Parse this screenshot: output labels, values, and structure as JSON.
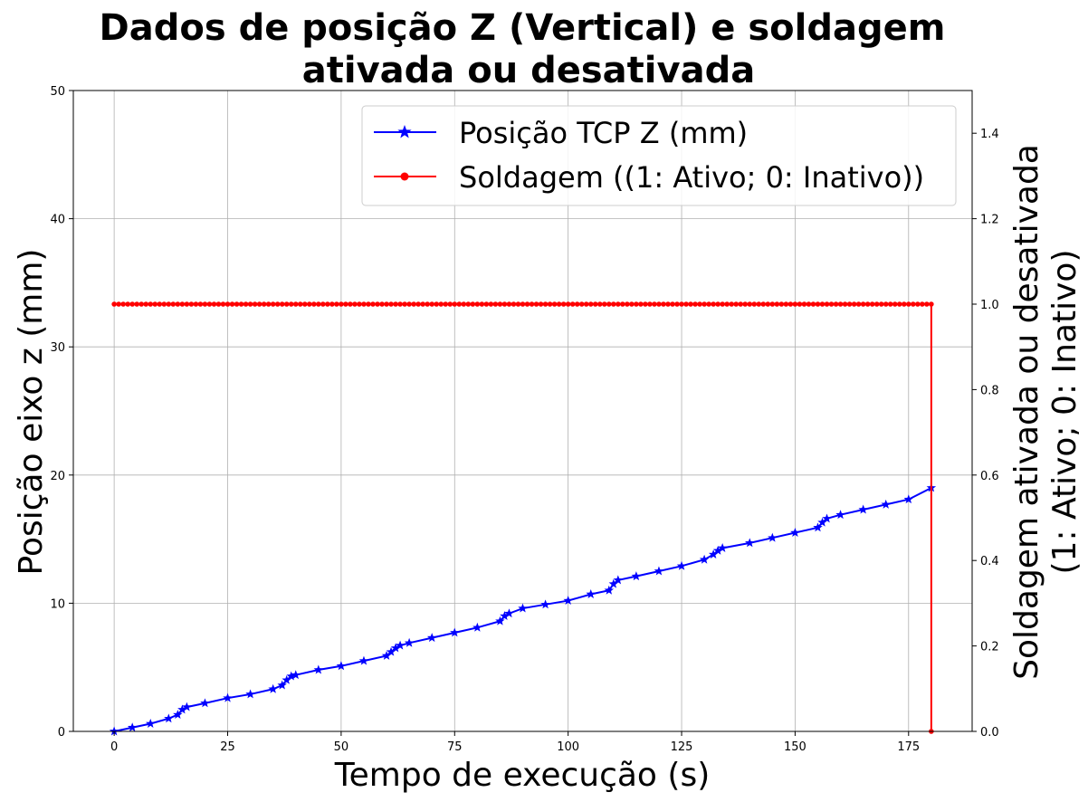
{
  "chart_data": {
    "type": "line",
    "title": [
      "Dados de posição Z (Vertical) e soldagem",
      "ativada ou desativada"
    ],
    "xlabel": "Tempo de execução (s)",
    "ylabel_left": "Posição eixo z (mm)",
    "ylabel_right": [
      "Soldagem ativada ou desativada",
      "(1: Ativo; 0: Inativo)"
    ],
    "xlim": [
      -9,
      189
    ],
    "ylim_left": [
      0,
      50
    ],
    "ylim_right": [
      0,
      1.5
    ],
    "x_ticks": [
      0,
      25,
      50,
      75,
      100,
      125,
      150,
      175
    ],
    "y_left_ticks": [
      0,
      10,
      20,
      30,
      40,
      50
    ],
    "y_right_ticks": [
      "0.0",
      "0.2",
      "0.4",
      "0.6",
      "0.8",
      "1.0",
      "1.2",
      "1.4"
    ],
    "grid": true,
    "legend_position": "top-right",
    "series": [
      {
        "name": "Posição TCP Z (mm)",
        "axis": "left",
        "color": "#0000ff",
        "marker": "star",
        "x": [
          0,
          4,
          8,
          12,
          14,
          15,
          16,
          20,
          25,
          30,
          35,
          37,
          38,
          39,
          40,
          45,
          50,
          55,
          60,
          61,
          62,
          63,
          65,
          70,
          75,
          80,
          85,
          86,
          87,
          90,
          95,
          100,
          105,
          109,
          110,
          111,
          115,
          120,
          125,
          130,
          132,
          133,
          134,
          140,
          145,
          150,
          155,
          156,
          157,
          160,
          165,
          170,
          175,
          180
        ],
        "values": [
          0.0,
          0.3,
          0.6,
          1.0,
          1.3,
          1.7,
          1.9,
          2.2,
          2.6,
          2.9,
          3.3,
          3.6,
          4.0,
          4.3,
          4.4,
          4.8,
          5.1,
          5.5,
          5.9,
          6.2,
          6.5,
          6.7,
          6.9,
          7.3,
          7.7,
          8.1,
          8.6,
          9.0,
          9.2,
          9.6,
          9.9,
          10.2,
          10.7,
          11.0,
          11.5,
          11.8,
          12.1,
          12.5,
          12.9,
          13.4,
          13.8,
          14.1,
          14.3,
          14.7,
          15.1,
          15.5,
          15.9,
          16.3,
          16.6,
          16.9,
          17.3,
          17.7,
          18.1,
          19.0
        ]
      },
      {
        "name": "Soldagem ((1: Ativo; 0: Inativo))",
        "axis": "right",
        "color": "#ff0000",
        "marker": "circle",
        "x": [
          0,
          180,
          180
        ],
        "values": [
          1.0,
          1.0,
          0.0
        ]
      }
    ]
  }
}
